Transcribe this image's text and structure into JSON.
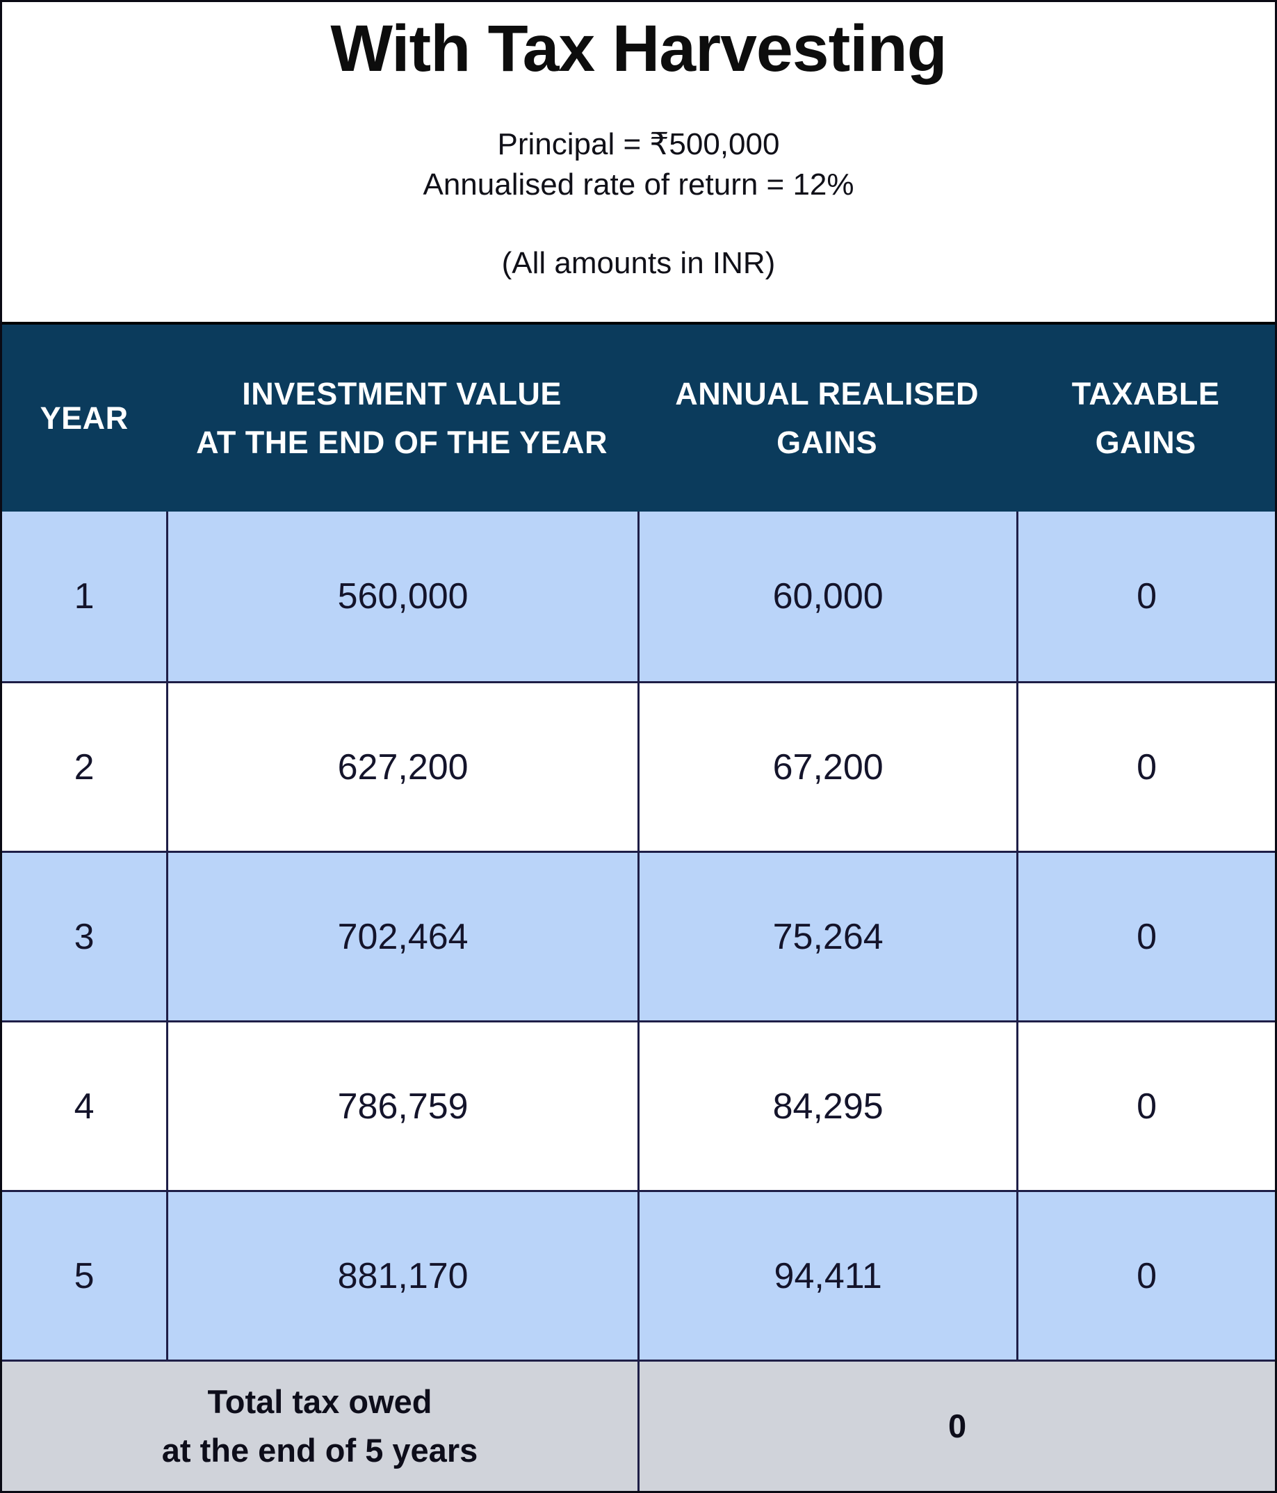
{
  "title": "With Tax Harvesting",
  "subtitle": {
    "principal": "Principal = ₹500,000",
    "rate": "Annualised rate of return = 12%",
    "note": "(All amounts in INR)"
  },
  "table": {
    "columns": [
      {
        "line1": "YEAR",
        "line2": ""
      },
      {
        "line1": "INVESTMENT VALUE",
        "line2": "AT THE END OF THE YEAR"
      },
      {
        "line1": "ANNUAL REALISED",
        "line2": "GAINS"
      },
      {
        "line1": "TAXABLE",
        "line2": "GAINS"
      }
    ],
    "rows": [
      {
        "year": "1",
        "investment_value": "560,000",
        "realised_gains": "60,000",
        "taxable_gains": "0"
      },
      {
        "year": "2",
        "investment_value": "627,200",
        "realised_gains": "67,200",
        "taxable_gains": "0"
      },
      {
        "year": "3",
        "investment_value": "702,464",
        "realised_gains": "75,264",
        "taxable_gains": "0"
      },
      {
        "year": "4",
        "investment_value": "786,759",
        "realised_gains": "84,295",
        "taxable_gains": "0"
      },
      {
        "year": "5",
        "investment_value": "881,170",
        "realised_gains": "94,411",
        "taxable_gains": "0"
      }
    ],
    "footer": {
      "label_line1": "Total tax owed",
      "label_line2": "at the end of 5 years",
      "total": "0"
    }
  },
  "colors": {
    "header_bg": "#0b3b5c",
    "row_alt_bg": "#bad4f9",
    "footer_bg": "#d0d3da",
    "border": "#1e1e47",
    "title_text": "#0d0d0d",
    "header_text": "#ffffff"
  },
  "chart_data": {
    "type": "table",
    "title": "With Tax Harvesting",
    "subtitle": [
      "Principal = ₹500,000",
      "Annualised rate of return = 12%",
      "(All amounts in INR)"
    ],
    "columns": [
      "YEAR",
      "INVESTMENT VALUE AT THE END OF THE YEAR",
      "ANNUAL REALISED GAINS",
      "TAXABLE GAINS"
    ],
    "rows": [
      [
        1,
        560000,
        60000,
        0
      ],
      [
        2,
        627200,
        67200,
        0
      ],
      [
        3,
        702464,
        75264,
        0
      ],
      [
        4,
        786759,
        84295,
        0
      ],
      [
        5,
        881170,
        94411,
        0
      ]
    ],
    "footer": {
      "label": "Total tax owed at the end of 5 years",
      "value": 0
    },
    "layout": {
      "alternating_row_colors": true,
      "grid": true
    }
  }
}
